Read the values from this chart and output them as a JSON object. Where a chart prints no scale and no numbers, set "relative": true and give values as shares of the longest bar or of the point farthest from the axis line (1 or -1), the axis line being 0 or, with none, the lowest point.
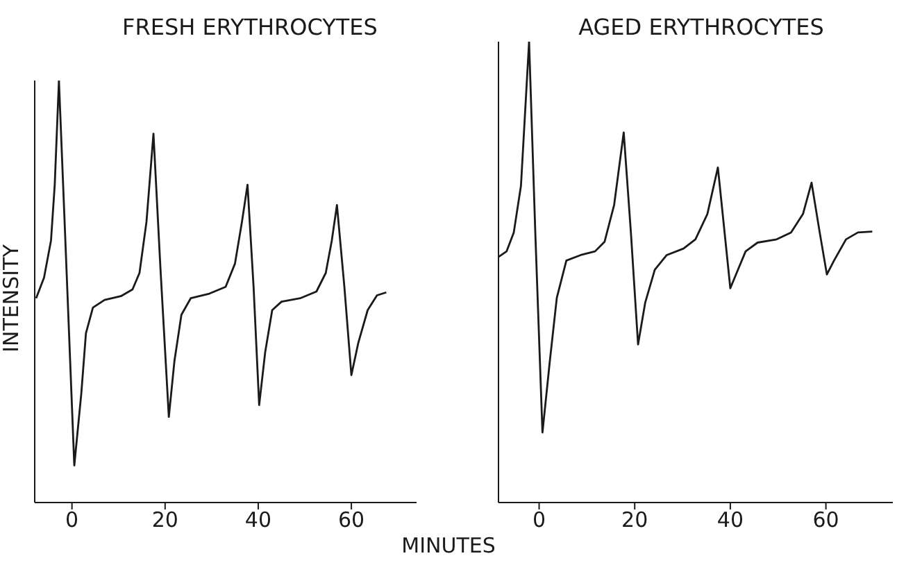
{
  "chart_data": [
    {
      "type": "line",
      "title": "FRESH ERYTHROCYTES",
      "xlabel": "MINUTES",
      "ylabel": "INTENSITY",
      "relative": true,
      "xlim": [
        -8,
        74
      ],
      "xticks": [
        0,
        20,
        40,
        60
      ],
      "x": [
        -7.7,
        -6,
        -4.5,
        -3.7,
        -2.8,
        -1.5,
        0.5,
        2,
        3,
        4.5,
        7,
        10.5,
        13,
        14.5,
        16,
        17.5,
        19,
        20.8,
        22,
        23.5,
        25.5,
        29.5,
        33,
        35,
        36.5,
        37.7,
        39,
        40.2,
        41.5,
        43,
        45,
        49,
        52.5,
        54.5,
        55.8,
        56.9,
        58.5,
        60,
        61.5,
        63.5,
        65.5,
        67.5
      ],
      "series": [
        {
          "color": "#1a1a1a",
          "values": [
            0.484,
            0.533,
            0.621,
            0.753,
            1,
            0.643,
            0.088,
            0.258,
            0.401,
            0.462,
            0.48,
            0.489,
            0.505,
            0.544,
            0.665,
            0.874,
            0.555,
            0.203,
            0.335,
            0.445,
            0.484,
            0.495,
            0.511,
            0.566,
            0.665,
            0.753,
            0.511,
            0.231,
            0.357,
            0.456,
            0.476,
            0.484,
            0.5,
            0.544,
            0.621,
            0.705,
            0.511,
            0.302,
            0.379,
            0.456,
            0.491,
            0.498
          ]
        }
      ]
    },
    {
      "type": "line",
      "title": "AGED ERYTHROCYTES",
      "relative": true,
      "xlim": [
        -8.5,
        74
      ],
      "xticks": [
        0,
        20,
        40,
        60
      ],
      "x": [
        -8.5,
        -6.8,
        -5.3,
        -3.8,
        -2.1,
        -0.8,
        0.7,
        2.2,
        3.7,
        5.7,
        8.7,
        11.7,
        13.7,
        15.7,
        17.7,
        19.2,
        20.7,
        22.2,
        24.2,
        26.7,
        30.2,
        32.7,
        35.2,
        37.4,
        38.7,
        40,
        41.2,
        43.2,
        45.7,
        49.7,
        52.7,
        55.2,
        57,
        58.7,
        60.2,
        61.7,
        64.2,
        66.7,
        69.7
      ],
      "series": [
        {
          "color": "#1a1a1a",
          "values": [
            0.533,
            0.545,
            0.586,
            0.687,
            1,
            0.586,
            0.152,
            0.303,
            0.444,
            0.525,
            0.537,
            0.545,
            0.566,
            0.646,
            0.803,
            0.586,
            0.343,
            0.434,
            0.505,
            0.537,
            0.551,
            0.571,
            0.626,
            0.727,
            0.596,
            0.465,
            0.495,
            0.545,
            0.564,
            0.571,
            0.586,
            0.626,
            0.694,
            0.586,
            0.495,
            0.525,
            0.571,
            0.586,
            0.588
          ]
        }
      ]
    }
  ]
}
